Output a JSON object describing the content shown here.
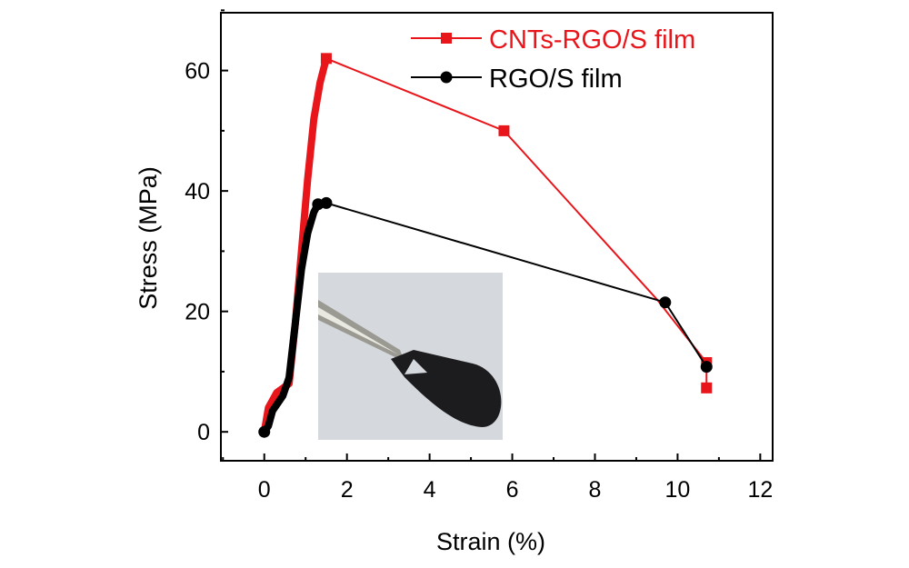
{
  "chart_data": {
    "type": "line",
    "title": "",
    "xlabel": "Strain (%)",
    "ylabel": "Stress (MPa)",
    "xlim": [
      -1.05,
      12.3
    ],
    "ylim": [
      -4.8,
      69.6
    ],
    "xticks": [
      0,
      2,
      4,
      6,
      8,
      10,
      12
    ],
    "yticks": [
      0,
      20,
      40,
      60
    ],
    "grid": false,
    "legend_position": "top-right",
    "series": [
      {
        "name": "CNTs-RGO/S film",
        "color": "#e8151b",
        "marker": "square",
        "x": [
          0,
          0.05,
          0.1,
          0.3,
          0.6,
          0.75,
          0.9,
          1.05,
          1.2,
          1.35,
          1.5,
          5.8,
          9.5,
          10.7,
          10.7
        ],
        "y": [
          0,
          2,
          4,
          6.5,
          8,
          18,
          30,
          42,
          52,
          58,
          62,
          50,
          22,
          11.5,
          7.3
        ],
        "markers_at": [
          10,
          11,
          13,
          14
        ]
      },
      {
        "name": "RGO/S film",
        "color": "#000000",
        "marker": "circle",
        "x": [
          0,
          0.1,
          0.2,
          0.45,
          0.6,
          0.75,
          0.9,
          1.05,
          1.2,
          1.3,
          1.5,
          9.7,
          10.7
        ],
        "y": [
          0,
          1,
          3.5,
          6,
          9,
          18,
          27,
          33,
          36.5,
          37.8,
          38,
          21.5,
          10.8
        ],
        "markers_at": [
          0,
          9,
          10,
          11,
          12
        ]
      }
    ]
  }
}
